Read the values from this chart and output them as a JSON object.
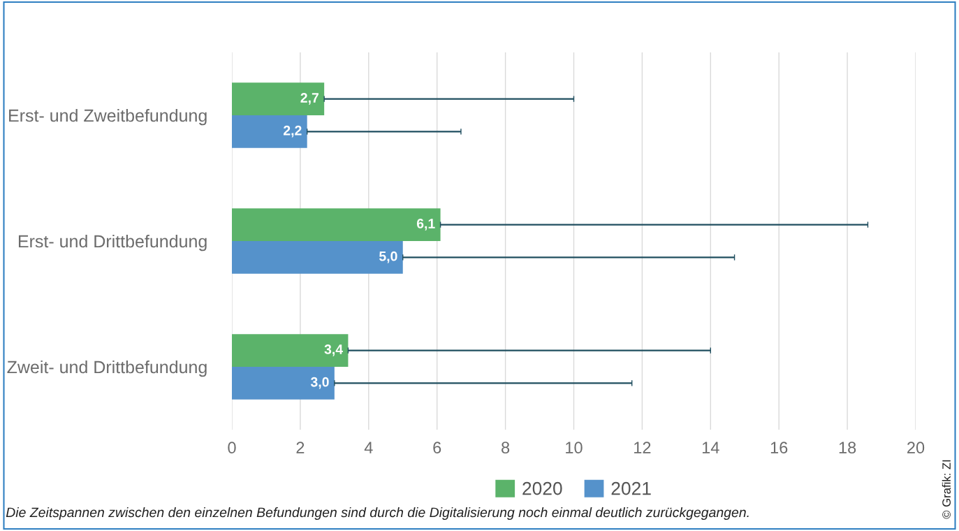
{
  "chart_data": {
    "type": "bar",
    "orientation": "horizontal",
    "categories": [
      "Erst- und Zweitbefundung",
      "Erst- und Drittbefundung",
      "Zweit- und Drittbefundung"
    ],
    "series": [
      {
        "name": "2020",
        "color": "#5bb36a",
        "values": [
          2.7,
          6.1,
          3.4
        ],
        "value_labels": [
          "2,7",
          "6,1",
          "3,4"
        ],
        "errors": [
          [
            2.7,
            10.0
          ],
          [
            6.1,
            18.6
          ],
          [
            3.4,
            14.0
          ]
        ]
      },
      {
        "name": "2021",
        "color": "#5592cb",
        "values": [
          2.2,
          5.0,
          3.0
        ],
        "value_labels": [
          "2,2",
          "5,0",
          "3,0"
        ],
        "errors": [
          [
            2.2,
            6.7
          ],
          [
            5.0,
            14.7
          ],
          [
            3.0,
            11.7
          ]
        ]
      }
    ],
    "xlim": [
      0,
      20
    ],
    "xticks": [
      0,
      2,
      4,
      6,
      8,
      10,
      12,
      14,
      16,
      18,
      20
    ],
    "grid": "x",
    "legend": "bottom",
    "annotations": [
      "Die Zeitspannen zwischen den einzelnen Befundungen sind durch die Digitalisierung noch einmal deutlich zurückgegangen.",
      "© Grafik: ZI"
    ]
  }
}
